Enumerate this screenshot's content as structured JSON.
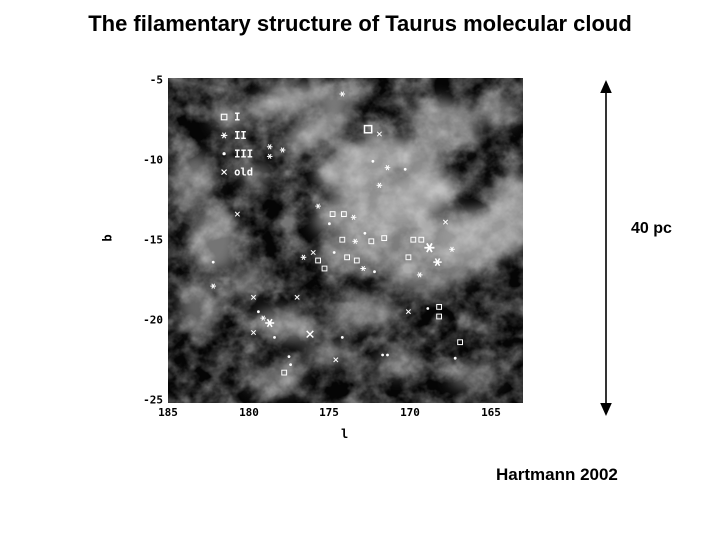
{
  "slide": {
    "title": "The filamentary structure of Taurus molecular cloud",
    "credit": "Hartmann 2002",
    "scale_label": "40 pc"
  },
  "colors": {
    "background": "#ffffff",
    "text": "#000000",
    "map_background": "#050505",
    "marker": "#ffffff"
  },
  "chart_data": {
    "type": "scatter",
    "description": "Grayscale emission map of the Taurus molecular cloud in galactic coordinates with young stellar objects overplotted by evolutionary class",
    "xlabel": "l",
    "ylabel": "b",
    "x_ticks": [
      185,
      180,
      175,
      170,
      165
    ],
    "y_ticks": [
      -5,
      -10,
      -15,
      -20,
      -25
    ],
    "xlim": [
      185,
      163
    ],
    "ylim": [
      -4.9,
      -25.2
    ],
    "x_axis_reversed": true,
    "grid": false,
    "legend_position": "upper-left-inside",
    "legend": [
      {
        "label": "I",
        "symbol": "open-square"
      },
      {
        "label": "II",
        "symbol": "star"
      },
      {
        "label": "III",
        "symbol": "dot"
      },
      {
        "label": "old",
        "symbol": "x"
      }
    ],
    "markers": [
      {
        "l": 174.2,
        "b": -5.9,
        "c": "II"
      },
      {
        "l": 172.6,
        "b": -8.1,
        "c": "I",
        "s": 1.5
      },
      {
        "l": 171.9,
        "b": -8.4,
        "c": "old"
      },
      {
        "l": 178.7,
        "b": -9.2,
        "c": "II"
      },
      {
        "l": 177.9,
        "b": -9.4,
        "c": "II"
      },
      {
        "l": 178.7,
        "b": -9.8,
        "c": "II"
      },
      {
        "l": 172.3,
        "b": -10.1,
        "c": "III"
      },
      {
        "l": 171.4,
        "b": -10.5,
        "c": "II"
      },
      {
        "l": 170.3,
        "b": -10.6,
        "c": "III"
      },
      {
        "l": 171.9,
        "b": -11.6,
        "c": "II"
      },
      {
        "l": 180.7,
        "b": -13.4,
        "c": "old"
      },
      {
        "l": 175.7,
        "b": -12.9,
        "c": "II"
      },
      {
        "l": 174.8,
        "b": -13.4,
        "c": "I"
      },
      {
        "l": 174.1,
        "b": -13.4,
        "c": "I"
      },
      {
        "l": 173.5,
        "b": -13.6,
        "c": "II"
      },
      {
        "l": 175.0,
        "b": -14.0,
        "c": "III"
      },
      {
        "l": 172.8,
        "b": -14.6,
        "c": "III"
      },
      {
        "l": 173.4,
        "b": -15.1,
        "c": "II"
      },
      {
        "l": 174.2,
        "b": -15.0,
        "c": "I"
      },
      {
        "l": 172.4,
        "b": -15.1,
        "c": "I"
      },
      {
        "l": 171.6,
        "b": -14.9,
        "c": "I"
      },
      {
        "l": 169.8,
        "b": -15.0,
        "c": "I"
      },
      {
        "l": 169.3,
        "b": -15.0,
        "c": "I"
      },
      {
        "l": 168.8,
        "b": -15.5,
        "c": "II",
        "s": 1.8
      },
      {
        "l": 167.4,
        "b": -15.6,
        "c": "II"
      },
      {
        "l": 176.0,
        "b": -15.8,
        "c": "old"
      },
      {
        "l": 176.6,
        "b": -16.1,
        "c": "II"
      },
      {
        "l": 175.7,
        "b": -16.3,
        "c": "I"
      },
      {
        "l": 175.3,
        "b": -16.8,
        "c": "I"
      },
      {
        "l": 174.7,
        "b": -15.8,
        "c": "III"
      },
      {
        "l": 173.9,
        "b": -16.1,
        "c": "I"
      },
      {
        "l": 173.3,
        "b": -16.3,
        "c": "I"
      },
      {
        "l": 172.9,
        "b": -16.8,
        "c": "II"
      },
      {
        "l": 172.2,
        "b": -17.0,
        "c": "III"
      },
      {
        "l": 170.1,
        "b": -16.1,
        "c": "I"
      },
      {
        "l": 169.4,
        "b": -17.2,
        "c": "II"
      },
      {
        "l": 168.3,
        "b": -16.4,
        "c": "II",
        "s": 1.5
      },
      {
        "l": 167.8,
        "b": -13.9,
        "c": "old"
      },
      {
        "l": 182.2,
        "b": -17.9,
        "c": "II"
      },
      {
        "l": 182.2,
        "b": -16.4,
        "c": "III"
      },
      {
        "l": 179.7,
        "b": -18.6,
        "c": "old"
      },
      {
        "l": 177.0,
        "b": -18.6,
        "c": "old"
      },
      {
        "l": 179.4,
        "b": -19.5,
        "c": "III"
      },
      {
        "l": 179.1,
        "b": -19.9,
        "c": "II"
      },
      {
        "l": 178.7,
        "b": -20.2,
        "c": "II",
        "s": 1.6
      },
      {
        "l": 179.7,
        "b": -20.8,
        "c": "old"
      },
      {
        "l": 178.4,
        "b": -21.1,
        "c": "III"
      },
      {
        "l": 176.2,
        "b": -20.9,
        "c": "old",
        "s": 1.5
      },
      {
        "l": 174.2,
        "b": -21.1,
        "c": "III"
      },
      {
        "l": 177.5,
        "b": -22.3,
        "c": "III"
      },
      {
        "l": 177.4,
        "b": -22.8,
        "c": "III"
      },
      {
        "l": 177.8,
        "b": -23.3,
        "c": "I"
      },
      {
        "l": 174.6,
        "b": -22.5,
        "c": "old"
      },
      {
        "l": 171.7,
        "b": -22.2,
        "c": "III"
      },
      {
        "l": 171.4,
        "b": -22.2,
        "c": "III"
      },
      {
        "l": 168.2,
        "b": -19.2,
        "c": "I"
      },
      {
        "l": 168.2,
        "b": -19.8,
        "c": "I"
      },
      {
        "l": 170.1,
        "b": -19.5,
        "c": "old"
      },
      {
        "l": 168.9,
        "b": -19.3,
        "c": "III"
      },
      {
        "l": 166.9,
        "b": -21.4,
        "c": "I"
      },
      {
        "l": 167.2,
        "b": -22.4,
        "c": "III"
      }
    ]
  }
}
